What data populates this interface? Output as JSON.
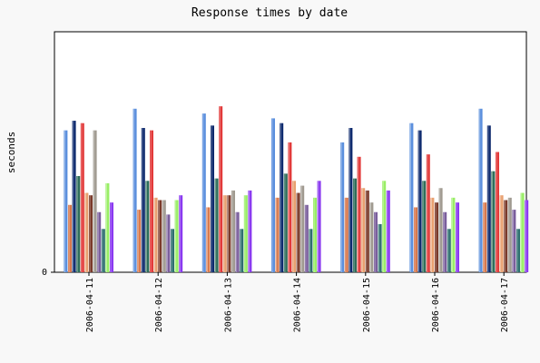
{
  "chart_data": {
    "type": "bar",
    "title": "Response times by date",
    "xlabel": "",
    "ylabel": "seconds",
    "ylim": [
      0,
      1
    ],
    "y_ticks": [
      "0"
    ],
    "grid": false,
    "legend": "none",
    "categories": [
      "2006-04-11",
      "2006-04-12",
      "2006-04-13",
      "2006-04-14",
      "2006-04-15",
      "2006-04-16",
      "2006-04-17"
    ],
    "series": [
      {
        "color": "#5b8fdd",
        "values": [
          0.59,
          0.68,
          0.66,
          0.64,
          0.54,
          0.62,
          0.68
        ]
      },
      {
        "color": "#d8784c",
        "values": [
          0.28,
          0.26,
          0.27,
          0.31,
          0.31,
          0.27,
          0.29
        ]
      },
      {
        "color": "#0e2a6e",
        "values": [
          0.63,
          0.6,
          0.61,
          0.62,
          0.6,
          0.59,
          0.61
        ]
      },
      {
        "color": "#2e6e5a",
        "values": [
          0.4,
          0.38,
          0.39,
          0.41,
          0.39,
          0.38,
          0.42
        ]
      },
      {
        "color": "#e23a3a",
        "values": [
          0.62,
          0.59,
          0.69,
          0.54,
          0.48,
          0.49,
          0.5
        ]
      },
      {
        "color": "#e8a070",
        "values": [
          0.33,
          0.31,
          0.32,
          0.38,
          0.35,
          0.31,
          0.32
        ]
      },
      {
        "color": "#7a3a2a",
        "values": [
          0.32,
          0.3,
          0.32,
          0.33,
          0.34,
          0.29,
          0.3
        ]
      },
      {
        "color": "#a09a90",
        "values": [
          0.59,
          0.3,
          0.34,
          0.36,
          0.29,
          0.35,
          0.31
        ]
      },
      {
        "color": "#7a5e9c",
        "values": [
          0.25,
          0.24,
          0.25,
          0.28,
          0.25,
          0.25,
          0.26
        ]
      },
      {
        "color": "#2f7070",
        "values": [
          0.18,
          0.18,
          0.18,
          0.18,
          0.2,
          0.18,
          0.18
        ]
      },
      {
        "color": "#99ee66",
        "values": [
          0.37,
          0.3,
          0.32,
          0.31,
          0.38,
          0.31,
          0.33
        ]
      },
      {
        "color": "#8a3af0",
        "values": [
          0.29,
          0.32,
          0.34,
          0.38,
          0.34,
          0.29,
          0.3
        ]
      }
    ]
  }
}
